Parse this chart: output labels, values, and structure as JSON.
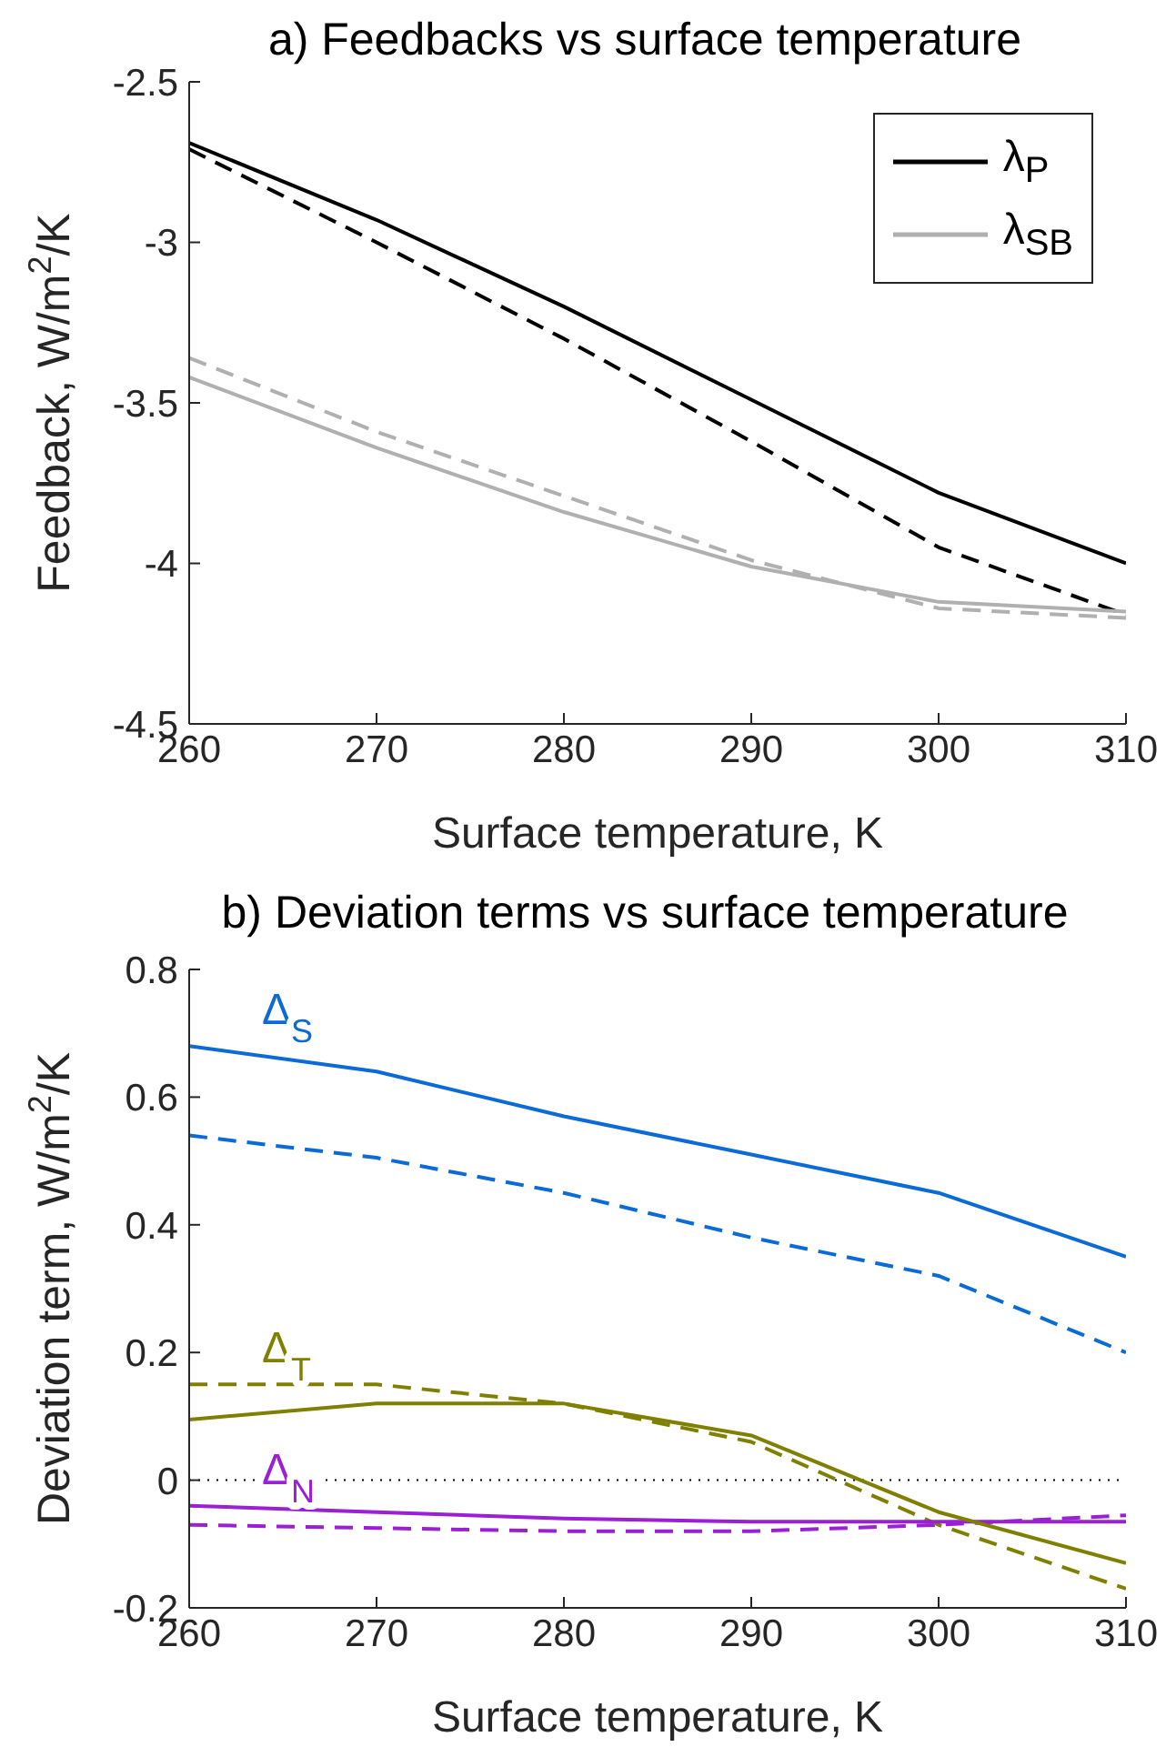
{
  "chart_data": [
    {
      "type": "line",
      "title": "a) Feedbacks vs surface temperature",
      "xlabel": "Surface temperature, K",
      "ylabel": "Feedback, W/m$^{2}$/K",
      "x": [
        260,
        270,
        280,
        290,
        300,
        310
      ],
      "xlim": [
        260,
        310
      ],
      "xticks": [
        260,
        270,
        280,
        290,
        300,
        310
      ],
      "ylim": [
        -4.5,
        -2.5
      ],
      "yticks": [
        -4.5,
        -4,
        -3.5,
        -3,
        -2.5
      ],
      "legend": "top right",
      "marker": "none",
      "series": [
        {
          "name": "λ$_{P}$",
          "color": "#000000",
          "line_style": "solid",
          "values": [
            -2.69,
            -2.93,
            -3.2,
            -3.49,
            -3.78,
            -4.0
          ]
        },
        {
          "name": "λ$_{SB}$",
          "color": "#b0b0b0",
          "line_style": "solid",
          "values": [
            -3.42,
            -3.64,
            -3.84,
            -4.01,
            -4.12,
            -4.15
          ]
        },
        {
          "color": "#000000",
          "line_style": "dashed",
          "values": [
            -2.71,
            -3.0,
            -3.3,
            -3.62,
            -3.95,
            -4.16
          ]
        },
        {
          "color": "#b0b0b0",
          "line_style": "dashed",
          "values": [
            -3.36,
            -3.59,
            -3.79,
            -3.99,
            -4.14,
            -4.17
          ]
        }
      ]
    },
    {
      "type": "line",
      "title": "b) Deviation terms vs surface temperature",
      "xlabel": "Surface temperature, K",
      "ylabel": "Deviation term, W/m$^{2}$/K",
      "x": [
        260,
        270,
        280,
        290,
        300,
        310
      ],
      "xlim": [
        260,
        310
      ],
      "xticks": [
        260,
        270,
        280,
        290,
        300,
        310
      ],
      "ylim": [
        -0.2,
        0.8
      ],
      "yticks": [
        -0.2,
        0,
        0.2,
        0.4,
        0.6,
        0.8
      ],
      "legend": false,
      "marker": "none",
      "ref_lines": [
        {
          "axis": "y",
          "value": 0,
          "color": "#000000",
          "line_style": "dotted"
        }
      ],
      "series": [
        {
          "name": "Δ$_{S}$",
          "color": "#0a6ad8",
          "line_style": "solid",
          "values": [
            0.68,
            0.64,
            0.57,
            0.51,
            0.45,
            0.35
          ]
        },
        {
          "name": "Δ$_{T}$",
          "color": "#7f7f00",
          "line_style": "solid",
          "values": [
            0.095,
            0.12,
            0.12,
            0.07,
            -0.05,
            -0.13
          ]
        },
        {
          "name": "Δ$_{N}$",
          "color": "#9a1fd6",
          "line_style": "solid",
          "values": [
            -0.04,
            -0.05,
            -0.06,
            -0.065,
            -0.065,
            -0.065
          ]
        },
        {
          "color": "#0a6ad8",
          "line_style": "dashed",
          "values": [
            0.54,
            0.505,
            0.45,
            0.38,
            0.32,
            0.2
          ]
        },
        {
          "color": "#7f7f00",
          "line_style": "dashed",
          "values": [
            0.15,
            0.15,
            0.12,
            0.06,
            -0.07,
            -0.17
          ]
        },
        {
          "color": "#9a1fd6",
          "line_style": "dashed",
          "values": [
            -0.07,
            -0.075,
            -0.08,
            -0.08,
            -0.07,
            -0.055
          ]
        }
      ]
    }
  ]
}
